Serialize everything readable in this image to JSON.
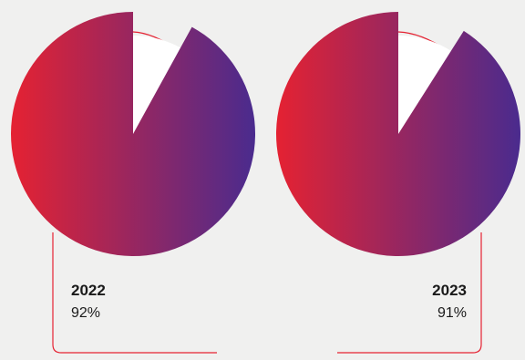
{
  "colors": {
    "gradient_start": "#e52232",
    "gradient_end": "#4a2b8e",
    "outline": "#e52232",
    "background": "#f0f0ef"
  },
  "chart_data": [
    {
      "type": "pie",
      "category": "2022",
      "value_label": "92%",
      "values": [
        92,
        8
      ],
      "slices": [
        "filled",
        "remainder"
      ]
    },
    {
      "type": "pie",
      "category": "2023",
      "value_label": "91%",
      "values": [
        91,
        9
      ],
      "slices": [
        "filled",
        "remainder"
      ]
    }
  ]
}
